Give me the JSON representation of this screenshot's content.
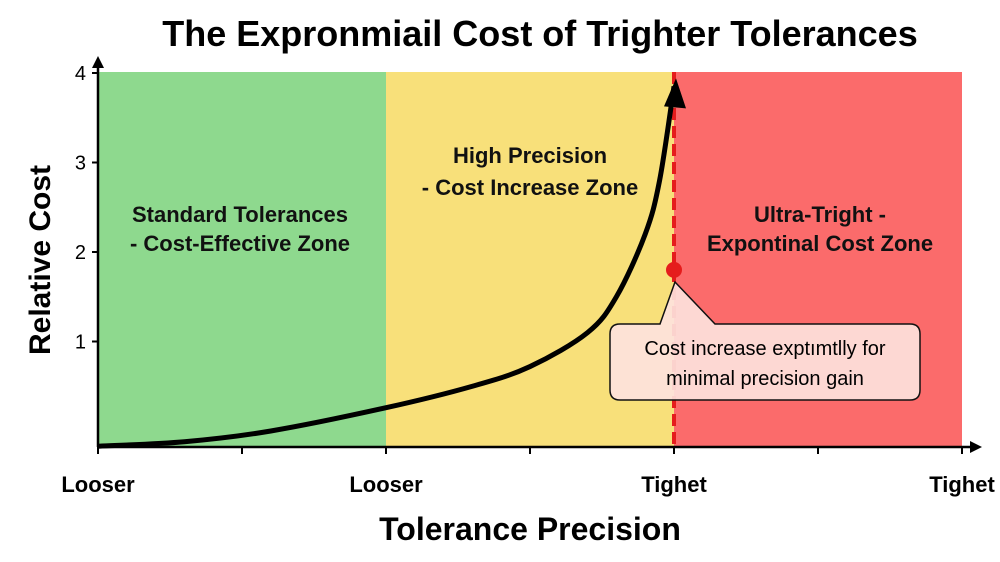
{
  "chart_data": {
    "type": "line",
    "title": "The Expronmiail Cost of Trighter Tolerances",
    "xlabel": "Tolerance Precision",
    "ylabel": "Relative Cost",
    "x_tick_labels": [
      "Looser",
      "Looser",
      "Tighet",
      "Tighet"
    ],
    "y_ticks": [
      1,
      2,
      3,
      4
    ],
    "ylim": [
      0,
      4
    ],
    "xlim": [
      0,
      3
    ],
    "zones": [
      {
        "name": "Standard Tolerances",
        "line1": "Standard Tolerances",
        "line2": "- Cost-Effective Zone",
        "from": 0,
        "to": 1,
        "color": "#8ed98e"
      },
      {
        "name": "High Precision",
        "line1": "High Precision",
        "line2": "- Cost Increase Zone",
        "from": 1,
        "to": 2,
        "color": "#f8e07a"
      },
      {
        "name": "Ultra-Tright",
        "line1": "Ultra-Tright -",
        "line2": "Expontinal Cost Zone",
        "from": 2,
        "to": 3,
        "color": "#fb6b6b"
      }
    ],
    "series": [
      {
        "name": "Relative Cost",
        "color": "#000000",
        "x": [
          0,
          0.3,
          0.6,
          1.0,
          1.3,
          1.5,
          1.7,
          1.8,
          1.9,
          1.95,
          2.0
        ],
        "y": [
          -0.17,
          -0.12,
          0.0,
          0.26,
          0.5,
          0.72,
          1.1,
          1.5,
          2.2,
          2.8,
          3.85
        ]
      }
    ],
    "threshold": {
      "x": 2,
      "color": "#e51c1c"
    },
    "marker": {
      "x": 2,
      "y": 1.8,
      "color": "#e51c1c"
    },
    "annotation": {
      "line1": "Cost increase exptımtlly for",
      "line2": "minimal precision gain"
    }
  }
}
